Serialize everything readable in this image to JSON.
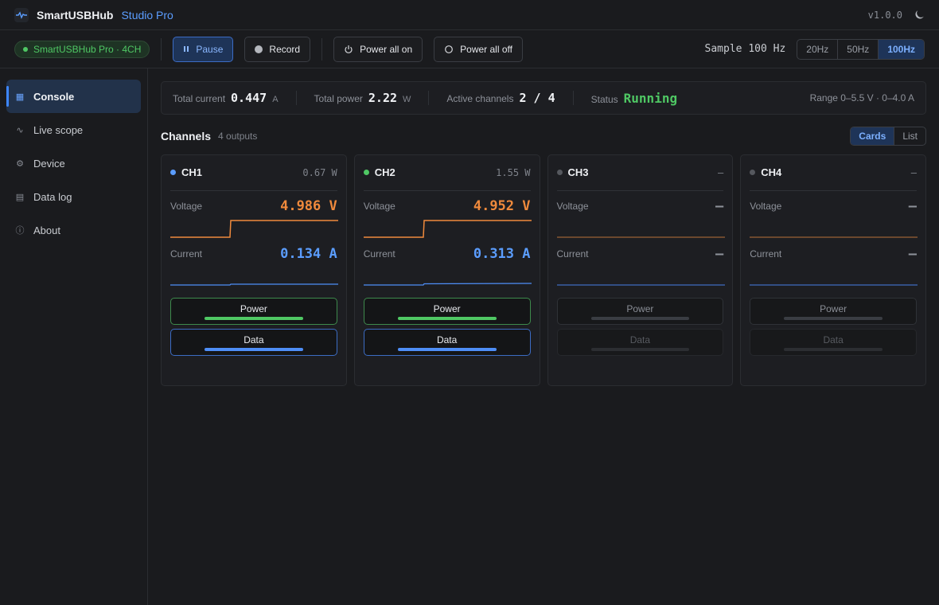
{
  "app": {
    "name": "SmartUSBHub",
    "edition": "Studio Pro",
    "version": "v1.0.0"
  },
  "toolbar": {
    "device_label": "SmartUSBHub Pro · 4CH",
    "pause_label": "Pause",
    "record_label": "Record",
    "power_all_on_label": "Power all on",
    "power_all_off_label": "Power all off",
    "sample_label": "Sample 100 Hz",
    "rates": [
      "20Hz",
      "50Hz",
      "100Hz"
    ],
    "active_rate": "100Hz"
  },
  "sidebar": {
    "items": [
      {
        "label": "Console",
        "icon": "grid-icon",
        "active": true
      },
      {
        "label": "Live scope",
        "icon": "wave-icon",
        "active": false
      },
      {
        "label": "Device",
        "icon": "gear-icon",
        "active": false
      },
      {
        "label": "Data log",
        "icon": "table-icon",
        "active": false
      },
      {
        "label": "About",
        "icon": "info-icon",
        "active": false
      }
    ]
  },
  "summary": {
    "total_current_label": "Total current",
    "total_current_value": "0.447",
    "total_current_unit": "A",
    "total_power_label": "Total power",
    "total_power_value": "2.22",
    "total_power_unit": "W",
    "active_channels_label": "Active channels",
    "active_channels_value": "2 / 4",
    "status_label": "Status",
    "status_value": "Running",
    "range": "Range 0–5.5 V · 0–4.0 A"
  },
  "channels_header": {
    "title": "Channels",
    "count": "4 outputs",
    "views": [
      "Cards",
      "List"
    ],
    "active_view": "Cards"
  },
  "channels": [
    {
      "name": "CH1",
      "watts": "0.67 W",
      "voltage_label": "Voltage",
      "voltage": "4.986 V",
      "current_label": "Current",
      "current": "0.134 A",
      "power_label": "Power",
      "data_label": "Data",
      "dot_color": "#5b9dff",
      "active": true
    },
    {
      "name": "CH2",
      "watts": "1.55 W",
      "voltage_label": "Voltage",
      "voltage": "4.952 V",
      "current_label": "Current",
      "current": "0.313 A",
      "power_label": "Power",
      "data_label": "Data",
      "dot_color": "#4fc864",
      "active": true
    },
    {
      "name": "CH3",
      "watts": "–",
      "voltage_label": "Voltage",
      "voltage": "—",
      "current_label": "Current",
      "current": "—",
      "power_label": "Power",
      "data_label": "Data",
      "dot_color": "#55585e",
      "active": false
    },
    {
      "name": "CH4",
      "watts": "–",
      "voltage_label": "Voltage",
      "voltage": "—",
      "current_label": "Current",
      "current": "—",
      "power_label": "Power",
      "data_label": "Data",
      "dot_color": "#55585e",
      "active": false
    }
  ],
  "colors": {
    "accent": "#3d86ff",
    "ok": "#4fc864",
    "voltage": "#f08a3c",
    "current": "#5b9dff"
  }
}
